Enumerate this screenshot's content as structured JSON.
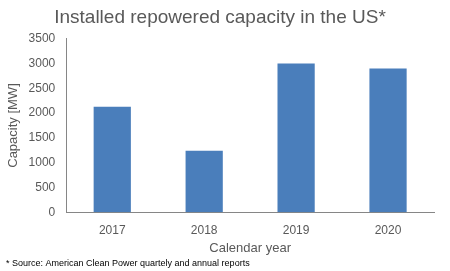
{
  "chart_data": {
    "type": "bar",
    "title": "Installed repowered capacity in the US*",
    "x_label": "Calendar year",
    "y_label": "Capacity [MW]",
    "annotation": "* Source: American Clean Power quartely and annual reports",
    "categories": [
      "2017",
      "2018",
      "2019",
      "2020"
    ],
    "values": [
      2130,
      1240,
      3000,
      2900
    ],
    "color": "#4a7ebb",
    "ylim": [
      0,
      3500
    ],
    "yticks": [
      0,
      500,
      1000,
      1500,
      2000,
      2500,
      3000,
      3500
    ],
    "grid": false
  }
}
